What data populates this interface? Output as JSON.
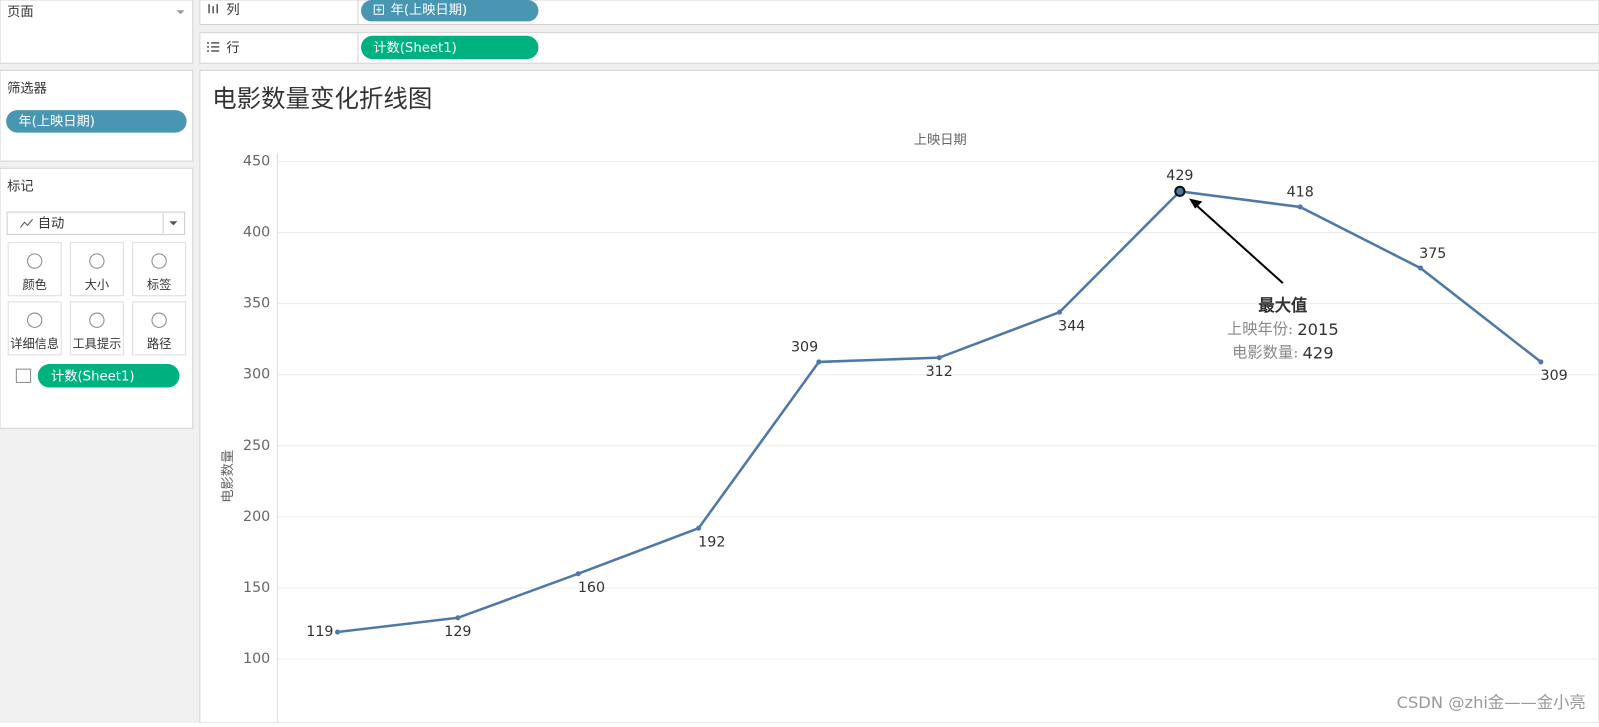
{
  "shelves": {
    "pages": "页面",
    "columns_label": "列",
    "columns_pill": "年(上映日期)",
    "rows_label": "行",
    "rows_pill": "计数(Sheet1)"
  },
  "filters": {
    "title": "筛选器",
    "pills": [
      "年(上映日期)"
    ]
  },
  "marks": {
    "title": "标记",
    "mark_type": "自动",
    "cards": [
      "颜色",
      "大小",
      "标签",
      "详细信息",
      "工具提示",
      "路径"
    ],
    "pills": [
      "计数(Sheet1)"
    ]
  },
  "chart_data": {
    "type": "line",
    "title": "电影数量变化折线图",
    "x_label": "上映日期",
    "y_label": "电影数量",
    "categories": [
      null,
      null,
      null,
      null,
      null,
      null,
      null,
      null,
      null,
      null,
      null
    ],
    "series": [
      {
        "name": "计数(Sheet1)",
        "color": "#4e79a7",
        "values": [
          119,
          129,
          160,
          192,
          309,
          312,
          344,
          429,
          418,
          375,
          309
        ]
      }
    ],
    "ylim": [
      55,
      456
    ],
    "yticks": [
      100,
      150,
      200,
      250,
      300,
      350,
      400,
      450
    ],
    "grid": true,
    "annotation": {
      "title": "最大值",
      "lines": [
        {
          "label": "上映年份:",
          "value": 2015
        },
        {
          "label": "电影数量:",
          "value": 429
        }
      ]
    }
  },
  "watermark": "CSDN @zhi金——金小亮"
}
